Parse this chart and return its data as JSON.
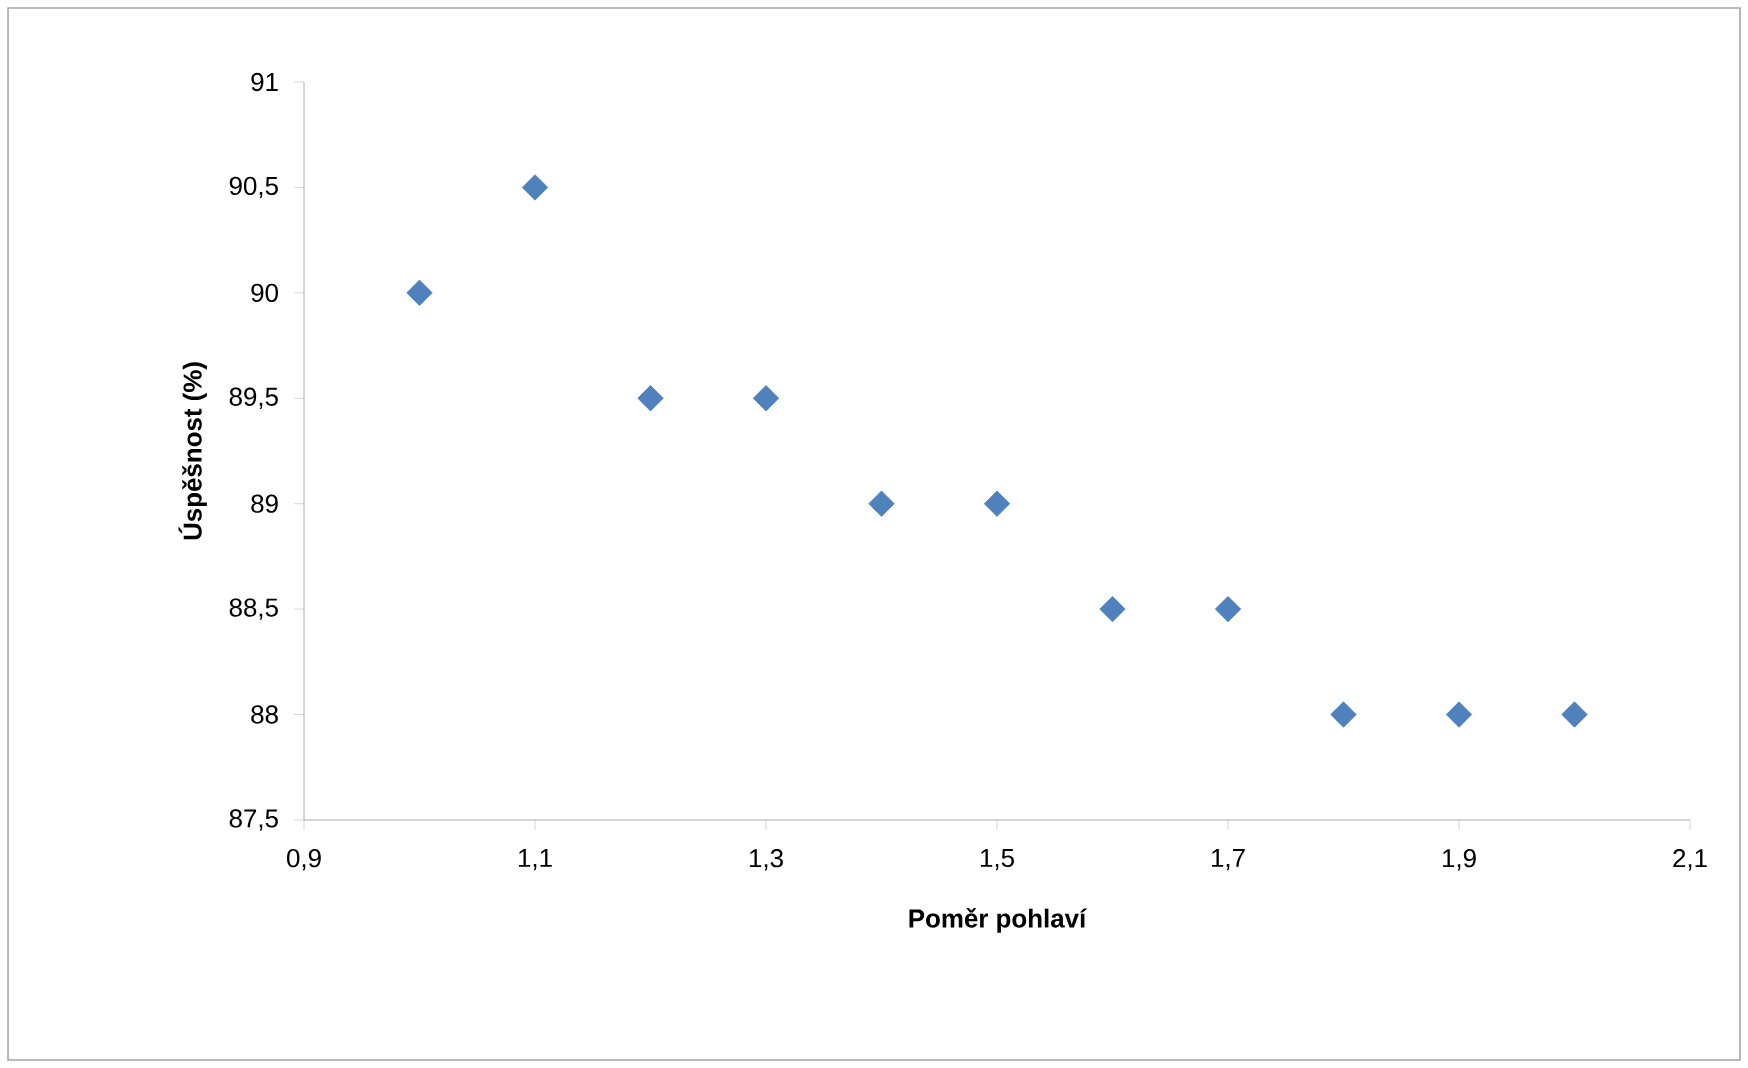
{
  "chart_data": {
    "type": "scatter",
    "xlabel": "Poměr pohlaví",
    "ylabel": "Úspěšnost (%)",
    "x": [
      1.0,
      1.1,
      1.2,
      1.3,
      1.4,
      1.5,
      1.6,
      1.7,
      1.8,
      1.9,
      2.0
    ],
    "values": [
      90,
      90.5,
      89.5,
      89.5,
      89,
      89,
      88.5,
      88.5,
      88,
      88,
      88
    ],
    "color": "#4f81bd",
    "marker": "diamond",
    "grid": false,
    "xlim": [
      0.9,
      2.1
    ],
    "xticks": [
      {
        "value": 0.9,
        "label": "0,9"
      },
      {
        "value": 1.1,
        "label": "1,1"
      },
      {
        "value": 1.3,
        "label": "1,3"
      },
      {
        "value": 1.5,
        "label": "1,5"
      },
      {
        "value": 1.7,
        "label": "1,7"
      },
      {
        "value": 1.9,
        "label": "1,9"
      },
      {
        "value": 2.1,
        "label": "2,1"
      }
    ],
    "ylim": [
      87.5,
      91
    ],
    "yticks": [
      {
        "value": 87.5,
        "label": "87,5"
      },
      88,
      {
        "value": 88.5,
        "label": "88,5"
      },
      89,
      {
        "value": 89.5,
        "label": "89,5"
      },
      90,
      {
        "value": 90.5,
        "label": "90,5"
      },
      91
    ]
  }
}
